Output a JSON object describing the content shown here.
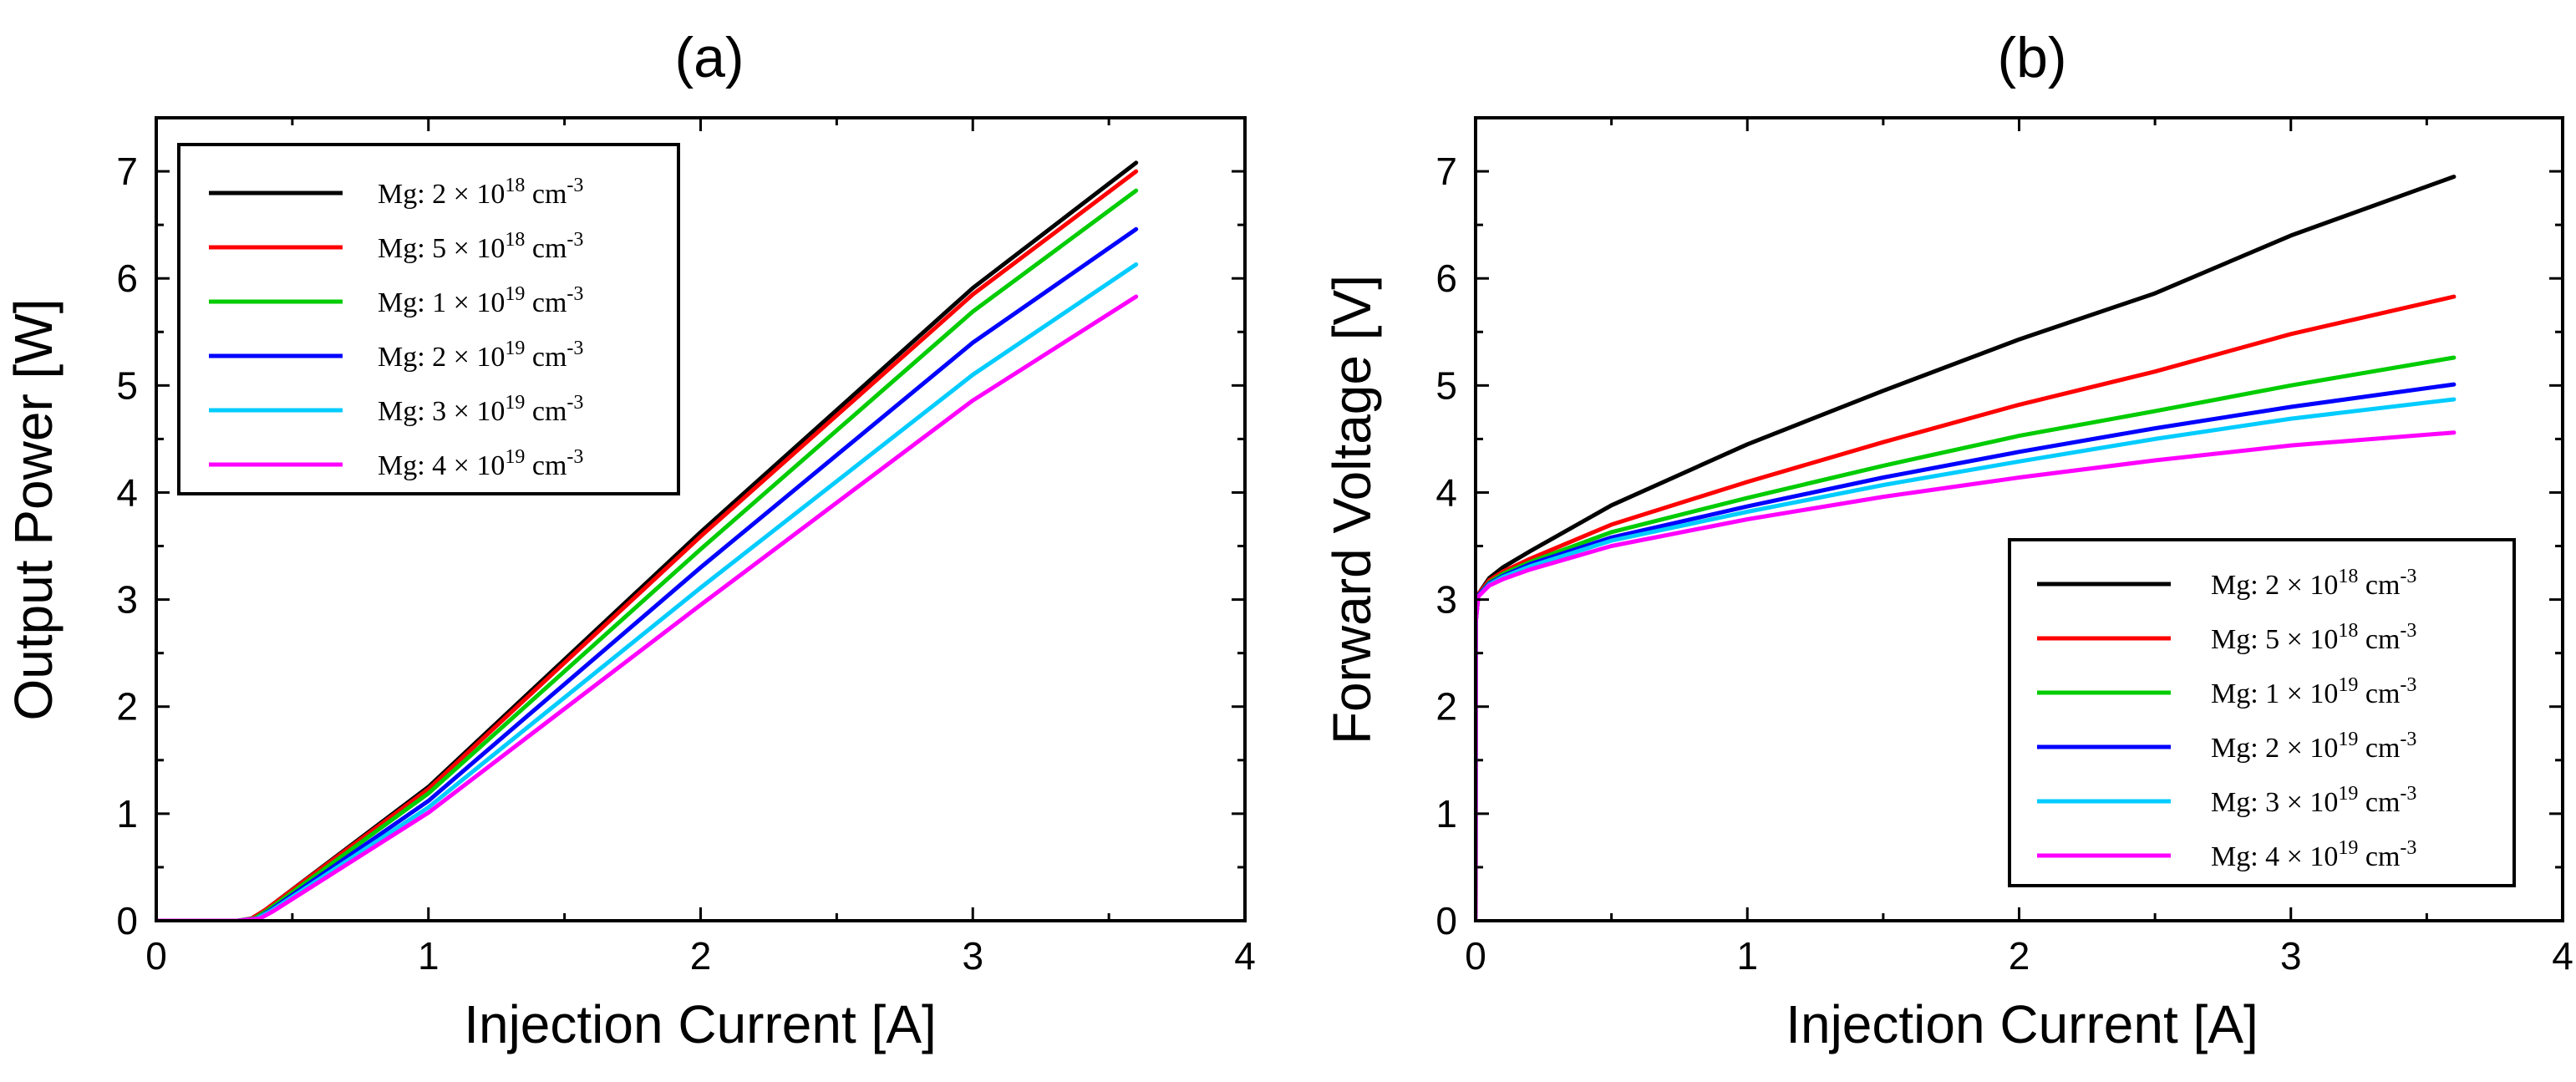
{
  "chart_data": [
    {
      "type": "line",
      "title": "(a)",
      "xlabel": "Injection Current [A]",
      "ylabel": "Output Power [W]",
      "xlim": [
        0,
        4
      ],
      "ylim": [
        0,
        7.5
      ],
      "xticks": [
        "0",
        "1",
        "2",
        "3",
        "4"
      ],
      "yticks": [
        "0",
        "1",
        "2",
        "3",
        "4",
        "5",
        "6",
        "7"
      ],
      "legend_position": "top-left",
      "series": [
        {
          "name": "Mg: 2 × 10",
          "exp": "18",
          "unit": " cm",
          "uexp": "-3",
          "color": "#000000",
          "x": [
            0,
            0.3,
            0.35,
            0.4,
            1.0,
            2.0,
            3.0,
            3.6
          ],
          "y": [
            0,
            0,
            0.02,
            0.1,
            1.25,
            3.63,
            5.91,
            7.08
          ]
        },
        {
          "name": "Mg: 5 × 10",
          "exp": "18",
          "unit": " cm",
          "uexp": "-3",
          "color": "#ff0000",
          "x": [
            0,
            0.3,
            0.35,
            0.4,
            1.0,
            2.0,
            3.0,
            3.6
          ],
          "y": [
            0,
            0,
            0.02,
            0.1,
            1.23,
            3.59,
            5.85,
            7.0
          ]
        },
        {
          "name": "Mg: 1 × 10",
          "exp": "19",
          "unit": " cm",
          "uexp": "-3",
          "color": "#00cc00",
          "x": [
            0,
            0.3,
            0.36,
            0.41,
            1.0,
            2.0,
            3.0,
            3.6
          ],
          "y": [
            0,
            0,
            0.02,
            0.1,
            1.19,
            3.47,
            5.69,
            6.82
          ]
        },
        {
          "name": "Mg: 2 × 10",
          "exp": "19",
          "unit": " cm",
          "uexp": "-3",
          "color": "#0000ff",
          "x": [
            0,
            0.3,
            0.37,
            0.42,
            1.0,
            2.0,
            3.0,
            3.6
          ],
          "y": [
            0,
            0,
            0.02,
            0.1,
            1.12,
            3.3,
            5.4,
            6.46
          ]
        },
        {
          "name": "Mg: 3 × 10",
          "exp": "19",
          "unit": " cm",
          "uexp": "-3",
          "color": "#00ccff",
          "x": [
            0,
            0.3,
            0.37,
            0.42,
            1.0,
            2.0,
            3.0,
            3.6
          ],
          "y": [
            0,
            0,
            0.02,
            0.09,
            1.06,
            3.11,
            5.1,
            6.13
          ]
        },
        {
          "name": "Mg: 4 × 10",
          "exp": "19",
          "unit": " cm",
          "uexp": "-3",
          "color": "#ff00ff",
          "x": [
            0,
            0.3,
            0.38,
            0.43,
            1.0,
            2.0,
            3.0,
            3.6
          ],
          "y": [
            0,
            0,
            0.02,
            0.09,
            1.01,
            2.95,
            4.86,
            5.83
          ]
        }
      ]
    },
    {
      "type": "line",
      "title": "(b)",
      "xlabel": "Injection Current [A]",
      "ylabel": "Forward Voltage [V]",
      "xlim": [
        0,
        4
      ],
      "ylim": [
        0,
        7.5
      ],
      "xticks": [
        "0",
        "1",
        "2",
        "3",
        "4"
      ],
      "yticks": [
        "0",
        "1",
        "2",
        "3",
        "4",
        "5",
        "6",
        "7"
      ],
      "legend_position": "bottom-right",
      "series": [
        {
          "name": "Mg: 2 × 10",
          "exp": "18",
          "unit": " cm",
          "uexp": "-3",
          "color": "#000000",
          "x": [
            0,
            0.001,
            0.01,
            0.05,
            0.1,
            0.2,
            0.5,
            1.0,
            1.5,
            2.0,
            2.5,
            3.0,
            3.6
          ],
          "y": [
            0,
            2.8,
            3.05,
            3.2,
            3.3,
            3.45,
            3.88,
            4.45,
            4.95,
            5.43,
            5.86,
            6.4,
            6.95
          ]
        },
        {
          "name": "Mg: 5 × 10",
          "exp": "18",
          "unit": " cm",
          "uexp": "-3",
          "color": "#ff0000",
          "x": [
            0,
            0.001,
            0.01,
            0.05,
            0.1,
            0.2,
            0.5,
            1.0,
            1.5,
            2.0,
            2.5,
            3.0,
            3.6
          ],
          "y": [
            0,
            2.8,
            3.05,
            3.18,
            3.26,
            3.38,
            3.7,
            4.1,
            4.47,
            4.82,
            5.13,
            5.48,
            5.83
          ]
        },
        {
          "name": "Mg: 1 × 10",
          "exp": "19",
          "unit": " cm",
          "uexp": "-3",
          "color": "#00cc00",
          "x": [
            0,
            0.001,
            0.01,
            0.05,
            0.1,
            0.2,
            0.5,
            1.0,
            1.5,
            2.0,
            2.5,
            3.0,
            3.6
          ],
          "y": [
            0,
            2.8,
            3.04,
            3.16,
            3.24,
            3.35,
            3.63,
            3.95,
            4.25,
            4.53,
            4.76,
            5.0,
            5.26
          ]
        },
        {
          "name": "Mg: 2 × 10",
          "exp": "19",
          "unit": " cm",
          "uexp": "-3",
          "color": "#0000ff",
          "x": [
            0,
            0.001,
            0.01,
            0.05,
            0.1,
            0.2,
            0.5,
            1.0,
            1.5,
            2.0,
            2.5,
            3.0,
            3.6
          ],
          "y": [
            0,
            2.8,
            3.04,
            3.15,
            3.22,
            3.33,
            3.58,
            3.87,
            4.14,
            4.38,
            4.6,
            4.8,
            5.01
          ]
        },
        {
          "name": "Mg: 3 × 10",
          "exp": "19",
          "unit": " cm",
          "uexp": "-3",
          "color": "#00ccff",
          "x": [
            0,
            0.001,
            0.01,
            0.05,
            0.1,
            0.2,
            0.5,
            1.0,
            1.5,
            2.0,
            2.5,
            3.0,
            3.6
          ],
          "y": [
            0,
            2.8,
            3.03,
            3.14,
            3.21,
            3.31,
            3.55,
            3.82,
            4.07,
            4.29,
            4.5,
            4.69,
            4.87
          ]
        },
        {
          "name": "Mg: 4 × 10",
          "exp": "19",
          "unit": " cm",
          "uexp": "-3",
          "color": "#ff00ff",
          "x": [
            0,
            0.001,
            0.01,
            0.05,
            0.1,
            0.2,
            0.5,
            1.0,
            1.5,
            2.0,
            2.5,
            3.0,
            3.6
          ],
          "y": [
            0,
            2.8,
            3.03,
            3.13,
            3.19,
            3.28,
            3.5,
            3.75,
            3.96,
            4.14,
            4.3,
            4.44,
            4.56
          ]
        }
      ]
    }
  ]
}
